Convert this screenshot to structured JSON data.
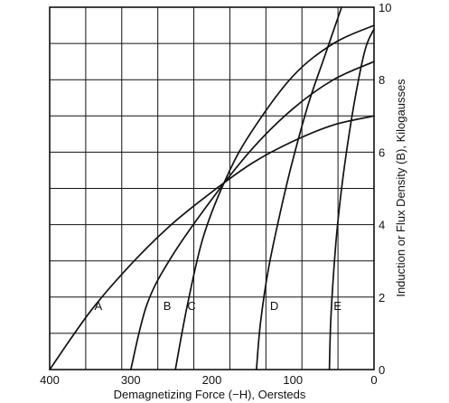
{
  "chart_data": {
    "type": "line",
    "xlabel": "Demagnetizing Force (−H), Oersteds",
    "ylabel": "Induction or Flux Density (B), Kilogausses",
    "xlim": [
      400,
      0
    ],
    "ylim": [
      0,
      10
    ],
    "x_ticks": [
      400,
      300,
      200,
      100,
      0
    ],
    "y_ticks": [
      0,
      2,
      4,
      6,
      8,
      10
    ],
    "grid": true,
    "series": [
      {
        "name": "A",
        "points": [
          [
            400,
            0
          ],
          [
            350,
            1.6
          ],
          [
            300,
            2.9
          ],
          [
            250,
            4.0
          ],
          [
            200,
            4.9
          ],
          [
            150,
            5.7
          ],
          [
            100,
            6.3
          ],
          [
            50,
            6.75
          ],
          [
            0,
            7.0
          ]
        ]
      },
      {
        "name": "B",
        "points": [
          [
            300,
            0
          ],
          [
            280,
            1.8
          ],
          [
            250,
            3.1
          ],
          [
            200,
            4.7
          ],
          [
            150,
            6.1
          ],
          [
            100,
            7.2
          ],
          [
            50,
            8.0
          ],
          [
            0,
            8.5
          ]
        ]
      },
      {
        "name": "C",
        "points": [
          [
            245,
            0
          ],
          [
            230,
            1.8
          ],
          [
            210,
            3.7
          ],
          [
            180,
            5.4
          ],
          [
            150,
            6.6
          ],
          [
            100,
            8.1
          ],
          [
            50,
            9.0
          ],
          [
            0,
            9.5
          ]
        ]
      },
      {
        "name": "D",
        "points": [
          [
            145,
            0
          ],
          [
            140,
            1.3
          ],
          [
            130,
            2.8
          ],
          [
            115,
            4.4
          ],
          [
            100,
            5.8
          ],
          [
            80,
            7.4
          ],
          [
            60,
            8.7
          ],
          [
            40,
            10.0
          ]
        ]
      },
      {
        "name": "E",
        "points": [
          [
            55,
            0
          ],
          [
            53,
            1.5
          ],
          [
            47,
            3.5
          ],
          [
            40,
            5.0
          ],
          [
            30,
            6.6
          ],
          [
            20,
            7.9
          ],
          [
            10,
            8.9
          ],
          [
            0,
            9.4
          ]
        ]
      }
    ]
  }
}
